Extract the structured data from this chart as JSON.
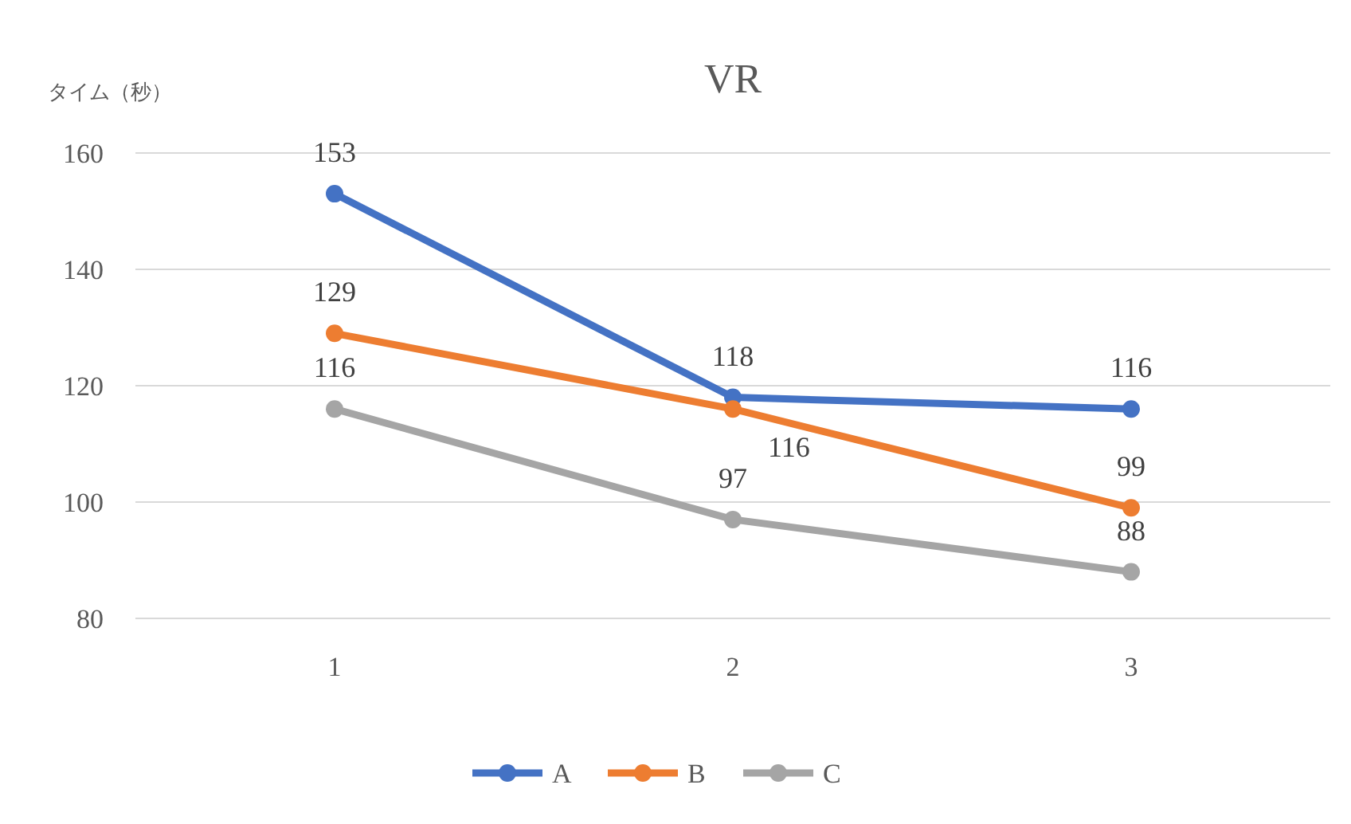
{
  "chart_data": {
    "type": "line",
    "title": "VR",
    "ylabel": "タイム（秒）",
    "categories": [
      "1",
      "2",
      "3"
    ],
    "series": [
      {
        "name": "A",
        "color": "#4472c4",
        "values": [
          153,
          118,
          116
        ]
      },
      {
        "name": "B",
        "color": "#ed7d31",
        "values": [
          129,
          116,
          99
        ]
      },
      {
        "name": "C",
        "color": "#a5a5a5",
        "values": [
          116,
          97,
          88
        ]
      }
    ],
    "ylim": [
      80,
      160
    ],
    "yticks": [
      80,
      100,
      120,
      140,
      160
    ],
    "grid": "y",
    "legend": "bottom",
    "marker": "circle",
    "line_style": "solid",
    "data_labels": true
  }
}
